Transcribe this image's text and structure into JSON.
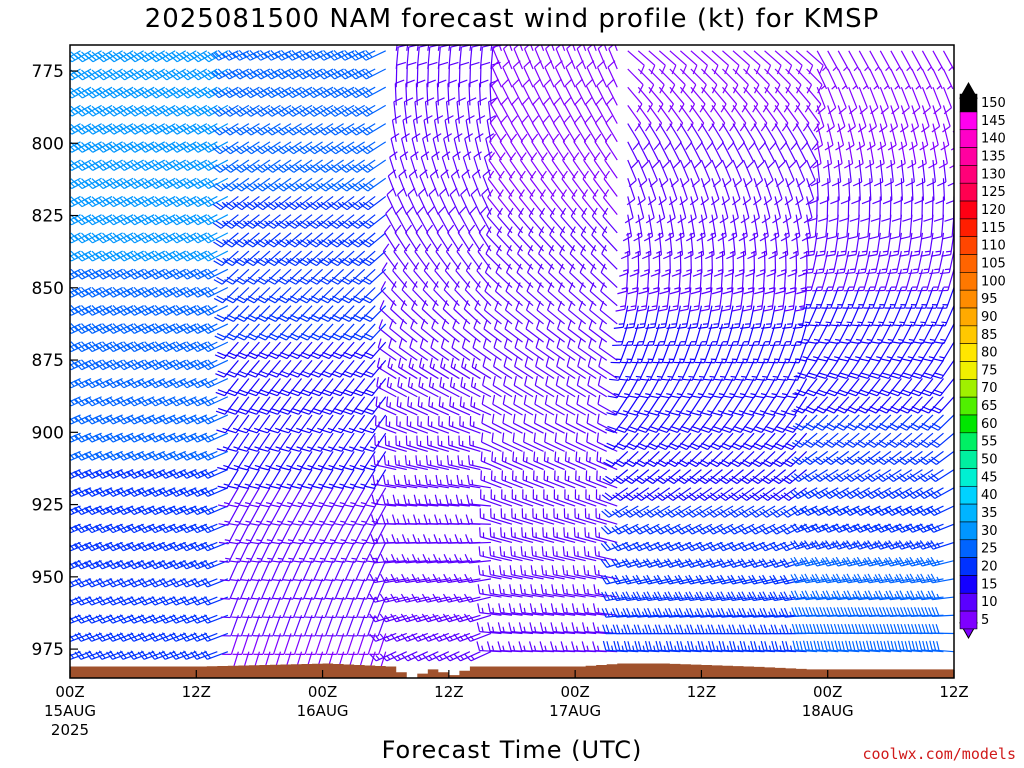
{
  "chart_data": {
    "type": "wind-profile",
    "title": "2025081500 NAM forecast wind profile (kt) for KMSP",
    "xlabel": "Forecast Time (UTC)",
    "ylabel": "",
    "y_axis": {
      "unit": "hPa",
      "ylim": [
        985,
        766
      ],
      "ticks": [
        775,
        800,
        825,
        850,
        875,
        900,
        925,
        950,
        975
      ]
    },
    "x_axis": {
      "xlim": [
        "2025-08-15 00Z",
        "2025-08-18 12Z"
      ],
      "ticks": [
        {
          "label": "00Z",
          "sub": "15AUG",
          "sub2": "2025",
          "hour": 0
        },
        {
          "label": "12Z",
          "sub": "",
          "sub2": "",
          "hour": 12
        },
        {
          "label": "00Z",
          "sub": "16AUG",
          "sub2": "",
          "hour": 24
        },
        {
          "label": "12Z",
          "sub": "",
          "sub2": "",
          "hour": 36
        },
        {
          "label": "00Z",
          "sub": "17AUG",
          "sub2": "",
          "hour": 48
        },
        {
          "label": "12Z",
          "sub": "",
          "sub2": "",
          "hour": 60
        },
        {
          "label": "00Z",
          "sub": "18AUG",
          "sub2": "",
          "hour": 72
        },
        {
          "label": "12Z",
          "sub": "",
          "sub2": "",
          "hour": 84
        }
      ]
    },
    "colorbar": {
      "unit": "kt",
      "levels": [
        5,
        10,
        15,
        20,
        25,
        30,
        35,
        40,
        45,
        50,
        55,
        60,
        65,
        70,
        75,
        80,
        85,
        90,
        95,
        100,
        105,
        110,
        115,
        120,
        125,
        130,
        135,
        140,
        145,
        150
      ],
      "colors": [
        "#7f00ff",
        "#5a00ff",
        "#1400ff",
        "#0032ff",
        "#0064ff",
        "#0096ff",
        "#00b4ff",
        "#00d2ff",
        "#00f0d2",
        "#00f0a0",
        "#00f064",
        "#00e600",
        "#50f000",
        "#a0f000",
        "#f0f000",
        "#ffe600",
        "#ffc800",
        "#ffaa00",
        "#ff8c00",
        "#ff7800",
        "#ff6400",
        "#ff4600",
        "#ff1e00",
        "#ff0014",
        "#ff0050",
        "#ff0078",
        "#ff00a0",
        "#ff00c8",
        "#ff00f0",
        "#000000"
      ]
    },
    "wind_segments": [
      {
        "from_hour": 0,
        "to_hour": 15,
        "low_dir": 250,
        "high_dir": 240,
        "low_speed": 20,
        "high_speed": 35
      },
      {
        "from_hour": 16,
        "to_hour": 30,
        "low_dir": 195,
        "high_dir": 245,
        "low_speed": 8,
        "high_speed": 30
      },
      {
        "from_hour": 31,
        "to_hour": 40,
        "low_dir": 240,
        "high_dir": 10,
        "low_speed": 15,
        "high_speed": 10
      },
      {
        "from_hour": 41,
        "to_hour": 52,
        "low_dir": 270,
        "high_dir": 340,
        "low_speed": 15,
        "high_speed": 8
      },
      {
        "from_hour": 53,
        "to_hour": 70,
        "low_dir": 280,
        "high_dir": 130,
        "low_speed": 25,
        "high_speed": 8
      },
      {
        "from_hour": 71,
        "to_hour": 84,
        "low_dir": 280,
        "high_dir": 150,
        "low_speed": 30,
        "high_speed": 6
      }
    ],
    "surface_pressure": [
      {
        "hour": 0,
        "hPa": 981
      },
      {
        "hour": 12,
        "hPa": 981
      },
      {
        "hour": 24,
        "hPa": 980
      },
      {
        "hour": 30,
        "hPa": 981
      },
      {
        "hour": 32,
        "hPa": 985
      },
      {
        "hour": 34,
        "hPa": 982
      },
      {
        "hour": 36,
        "hPa": 984
      },
      {
        "hour": 38,
        "hPa": 981
      },
      {
        "hour": 48,
        "hPa": 981
      },
      {
        "hour": 52,
        "hPa": 980
      },
      {
        "hour": 56,
        "hPa": 980
      },
      {
        "hour": 64,
        "hPa": 981
      },
      {
        "hour": 70,
        "hPa": 982
      },
      {
        "hour": 78,
        "hPa": 982
      },
      {
        "hour": 84,
        "hPa": 982
      }
    ]
  },
  "credit": "coolwx.com/models",
  "colors": {
    "terrain": "#a0522d",
    "frame": "#000000"
  }
}
